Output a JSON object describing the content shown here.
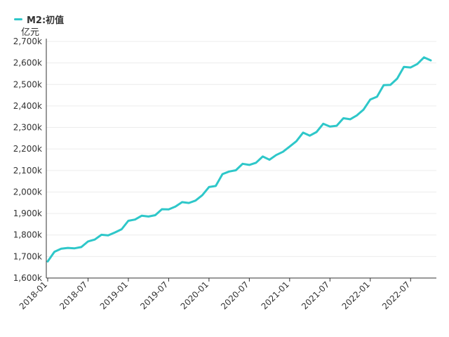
{
  "chart_data": {
    "type": "line",
    "unit": "亿元",
    "series": [
      {
        "name": "M2:初值",
        "color": "#2ec7c9",
        "x": [
          "2018-01",
          "2018-02",
          "2018-03",
          "2018-04",
          "2018-05",
          "2018-06",
          "2018-07",
          "2018-08",
          "2018-09",
          "2018-10",
          "2018-11",
          "2018-12",
          "2019-01",
          "2019-02",
          "2019-03",
          "2019-04",
          "2019-05",
          "2019-06",
          "2019-07",
          "2019-08",
          "2019-09",
          "2019-10",
          "2019-11",
          "2019-12",
          "2020-01",
          "2020-02",
          "2020-03",
          "2020-04",
          "2020-05",
          "2020-06",
          "2020-07",
          "2020-08",
          "2020-09",
          "2020-10",
          "2020-11",
          "2020-12",
          "2021-01",
          "2021-02",
          "2021-03",
          "2021-04",
          "2021-05",
          "2021-06",
          "2021-07",
          "2021-08",
          "2021-09",
          "2021-10",
          "2021-11",
          "2021-12",
          "2022-01",
          "2022-02",
          "2022-03",
          "2022-04",
          "2022-05",
          "2022-06",
          "2022-07",
          "2022-08",
          "2022-09",
          "2022-10"
        ],
        "values": [
          1677,
          1722,
          1736,
          1740,
          1738,
          1744,
          1770,
          1779,
          1801,
          1798,
          1812,
          1827,
          1866,
          1872,
          1890,
          1886,
          1892,
          1920,
          1919,
          1932,
          1953,
          1949,
          1960,
          1985,
          2023,
          2028,
          2083,
          2095,
          2101,
          2131,
          2126,
          2136,
          2165,
          2150,
          2172,
          2187,
          2211,
          2236,
          2276,
          2262,
          2279,
          2317,
          2304,
          2308,
          2343,
          2338,
          2356,
          2383,
          2430,
          2443,
          2497,
          2498,
          2527,
          2582,
          2579,
          2595,
          2626,
          2612
        ]
      }
    ],
    "xticks": [
      "2018-01",
      "2018-07",
      "2019-01",
      "2019-07",
      "2020-01",
      "2020-07",
      "2021-01",
      "2021-07",
      "2022-01",
      "2022-07"
    ],
    "yticks": [
      "1,600k",
      "1,700k",
      "1,800k",
      "1,900k",
      "2,000k",
      "2,100k",
      "2,200k",
      "2,300k",
      "2,400k",
      "2,500k",
      "2,600k",
      "2,700k"
    ],
    "ylim": [
      1600,
      2700
    ],
    "grid": true,
    "legend_position": "top-left"
  }
}
